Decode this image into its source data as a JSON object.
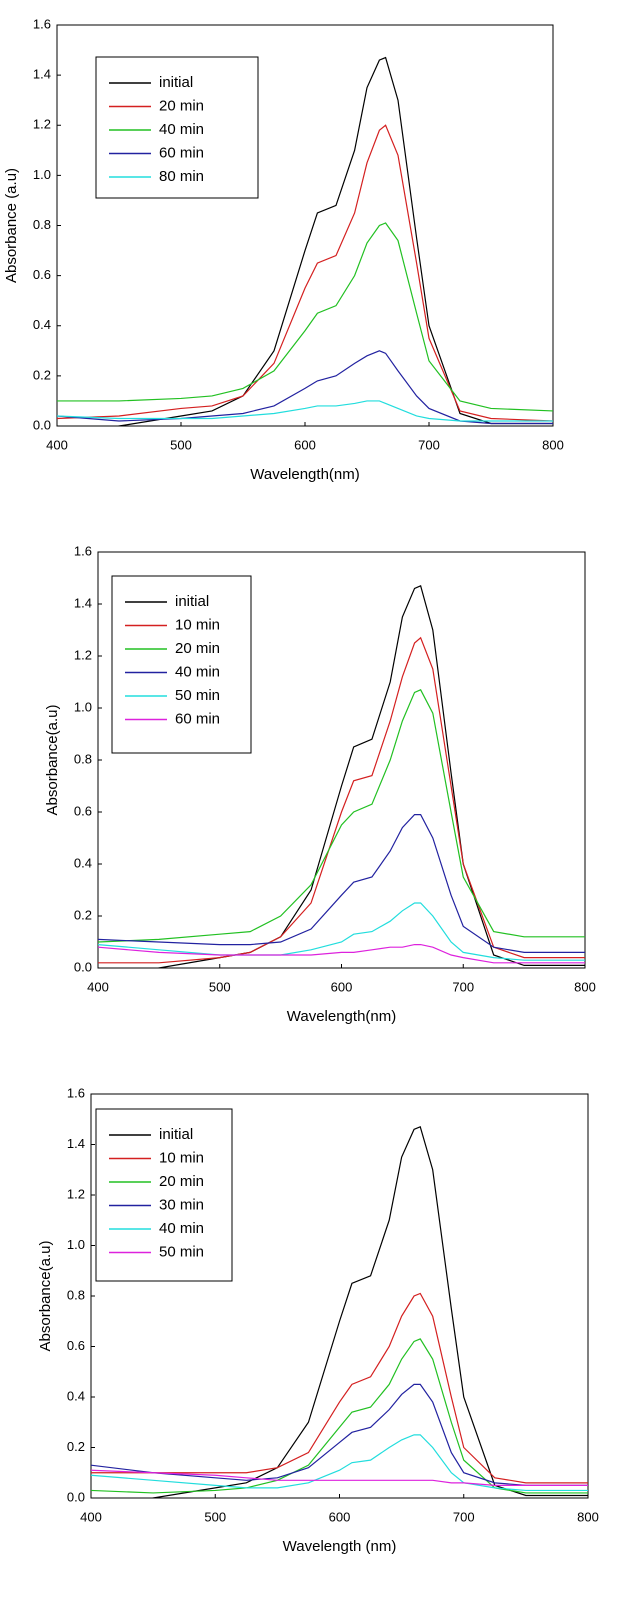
{
  "chart_data": [
    {
      "type": "line",
      "xlabel": "Wavelength(nm)",
      "ylabel": "Absorbance (a.u)",
      "x": [
        400,
        450,
        500,
        525,
        550,
        575,
        600,
        610,
        625,
        640,
        650,
        660,
        665,
        675,
        690,
        700,
        725,
        750,
        800
      ],
      "xlim": [
        400,
        800
      ],
      "xticks": [
        400,
        500,
        600,
        700,
        800
      ],
      "ylim": [
        0,
        1.6
      ],
      "yticks": [
        {
          "value": 0,
          "label": "0.0"
        },
        0.2,
        0.4,
        0.6,
        0.8,
        {
          "value": 1,
          "label": "1.0"
        },
        1.2,
        1.4,
        1.6
      ],
      "series": [
        {
          "name": "initial",
          "color": "#000000",
          "values": [
            -0.04,
            0,
            0.04,
            0.06,
            0.12,
            0.3,
            0.7,
            0.85,
            0.88,
            1.1,
            1.35,
            1.46,
            1.47,
            1.3,
            0.75,
            0.4,
            0.05,
            0.01,
            0.01
          ]
        },
        {
          "name": "20 min",
          "color": "#d42020",
          "values": [
            0.03,
            0.04,
            0.07,
            0.08,
            0.12,
            0.25,
            0.55,
            0.65,
            0.68,
            0.85,
            1.05,
            1.18,
            1.2,
            1.08,
            0.65,
            0.35,
            0.06,
            0.03,
            0.02
          ]
        },
        {
          "name": "40 min",
          "color": "#22c022",
          "values": [
            0.1,
            0.1,
            0.11,
            0.12,
            0.15,
            0.22,
            0.38,
            0.45,
            0.48,
            0.6,
            0.73,
            0.8,
            0.81,
            0.74,
            0.45,
            0.26,
            0.1,
            0.07,
            0.06
          ]
        },
        {
          "name": "60 min",
          "color": "#2222a0",
          "values": [
            0.04,
            0.02,
            0.03,
            0.04,
            0.05,
            0.08,
            0.15,
            0.18,
            0.2,
            0.25,
            0.28,
            0.3,
            0.29,
            0.22,
            0.12,
            0.07,
            0.02,
            0.01,
            0.01
          ]
        },
        {
          "name": "80 min",
          "color": "#22dddd",
          "values": [
            0.04,
            0.03,
            0.03,
            0.03,
            0.04,
            0.05,
            0.07,
            0.08,
            0.08,
            0.09,
            0.1,
            0.1,
            0.09,
            0.07,
            0.04,
            0.03,
            0.02,
            0.02,
            0.02
          ]
        }
      ]
    },
    {
      "type": "line",
      "xlabel": "Wavelength(nm)",
      "ylabel": "Absorbance(a.u)",
      "x": [
        400,
        450,
        500,
        525,
        550,
        575,
        600,
        610,
        625,
        640,
        650,
        660,
        665,
        675,
        690,
        700,
        725,
        750,
        800
      ],
      "xlim": [
        400,
        800
      ],
      "xticks": [
        400,
        500,
        600,
        700,
        800
      ],
      "ylim": [
        0,
        1.6
      ],
      "yticks": [
        {
          "value": 0,
          "label": "0.0"
        },
        0.2,
        0.4,
        0.6,
        0.8,
        {
          "value": 1,
          "label": "1.0"
        },
        1.2,
        1.4,
        1.6
      ],
      "series": [
        {
          "name": "initial",
          "color": "#000000",
          "values": [
            -0.04,
            0,
            0.04,
            0.06,
            0.12,
            0.3,
            0.7,
            0.85,
            0.88,
            1.1,
            1.35,
            1.46,
            1.47,
            1.3,
            0.75,
            0.4,
            0.05,
            0.01,
            0.01
          ]
        },
        {
          "name": "10 min",
          "color": "#d42020",
          "values": [
            0.02,
            0.02,
            0.04,
            0.06,
            0.12,
            0.25,
            0.6,
            0.72,
            0.74,
            0.95,
            1.12,
            1.25,
            1.27,
            1.15,
            0.7,
            0.4,
            0.08,
            0.04,
            0.04
          ]
        },
        {
          "name": "20 min",
          "color": "#22c022",
          "values": [
            0.1,
            0.11,
            0.13,
            0.14,
            0.2,
            0.32,
            0.55,
            0.6,
            0.63,
            0.8,
            0.95,
            1.06,
            1.07,
            0.98,
            0.6,
            0.35,
            0.14,
            0.12,
            0.12
          ]
        },
        {
          "name": "40 min",
          "color": "#2222a0",
          "values": [
            0.11,
            0.1,
            0.09,
            0.09,
            0.1,
            0.15,
            0.28,
            0.33,
            0.35,
            0.45,
            0.54,
            0.59,
            0.59,
            0.5,
            0.28,
            0.16,
            0.08,
            0.06,
            0.06
          ]
        },
        {
          "name": "50 min",
          "color": "#22dddd",
          "values": [
            0.09,
            0.07,
            0.05,
            0.05,
            0.05,
            0.07,
            0.1,
            0.13,
            0.14,
            0.18,
            0.22,
            0.25,
            0.25,
            0.2,
            0.1,
            0.06,
            0.04,
            0.03,
            0.03
          ]
        },
        {
          "name": "60 min",
          "color": "#dd22dd",
          "values": [
            0.08,
            0.06,
            0.05,
            0.05,
            0.05,
            0.05,
            0.06,
            0.06,
            0.07,
            0.08,
            0.08,
            0.09,
            0.09,
            0.08,
            0.05,
            0.04,
            0.02,
            0.02,
            0.02
          ]
        }
      ]
    },
    {
      "type": "line",
      "xlabel": "Wavelength (nm)",
      "ylabel": "Absorbance(a.u)",
      "x": [
        400,
        450,
        500,
        525,
        550,
        575,
        600,
        610,
        625,
        640,
        650,
        660,
        665,
        675,
        690,
        700,
        725,
        750,
        800
      ],
      "xlim": [
        400,
        800
      ],
      "xticks": [
        400,
        500,
        600,
        700,
        800
      ],
      "ylim": [
        0,
        1.6
      ],
      "yticks": [
        {
          "value": 0,
          "label": "0.0"
        },
        0.2,
        0.4,
        0.6,
        0.8,
        {
          "value": 1,
          "label": "1.0"
        },
        1.2,
        1.4,
        1.6
      ],
      "series": [
        {
          "name": "initial",
          "color": "#000000",
          "values": [
            -0.04,
            0,
            0.04,
            0.06,
            0.12,
            0.3,
            0.7,
            0.85,
            0.88,
            1.1,
            1.35,
            1.46,
            1.47,
            1.3,
            0.75,
            0.4,
            0.05,
            0.01,
            0.01
          ]
        },
        {
          "name": "10 min",
          "color": "#d42020",
          "values": [
            0.1,
            0.1,
            0.1,
            0.1,
            0.12,
            0.18,
            0.38,
            0.45,
            0.48,
            0.6,
            0.72,
            0.8,
            0.81,
            0.72,
            0.4,
            0.2,
            0.08,
            0.06,
            0.06
          ]
        },
        {
          "name": "20 min",
          "color": "#22c022",
          "values": [
            0.03,
            0.02,
            0.03,
            0.04,
            0.07,
            0.13,
            0.28,
            0.34,
            0.36,
            0.45,
            0.55,
            0.62,
            0.63,
            0.55,
            0.3,
            0.15,
            0.04,
            0.02,
            0.02
          ]
        },
        {
          "name": "30 min",
          "color": "#2222a0",
          "values": [
            0.13,
            0.1,
            0.08,
            0.07,
            0.08,
            0.12,
            0.22,
            0.26,
            0.28,
            0.35,
            0.41,
            0.45,
            0.45,
            0.38,
            0.18,
            0.1,
            0.06,
            0.05,
            0.05
          ]
        },
        {
          "name": "40 min",
          "color": "#22dddd",
          "values": [
            0.09,
            0.07,
            0.05,
            0.04,
            0.04,
            0.06,
            0.11,
            0.14,
            0.15,
            0.2,
            0.23,
            0.25,
            0.25,
            0.2,
            0.1,
            0.06,
            0.04,
            0.03,
            0.03
          ]
        },
        {
          "name": "50 min",
          "color": "#dd22dd",
          "values": [
            0.11,
            0.1,
            0.09,
            0.08,
            0.07,
            0.07,
            0.07,
            0.07,
            0.07,
            0.07,
            0.07,
            0.07,
            0.07,
            0.07,
            0.06,
            0.06,
            0.05,
            0.05,
            0.05
          ]
        }
      ]
    }
  ]
}
